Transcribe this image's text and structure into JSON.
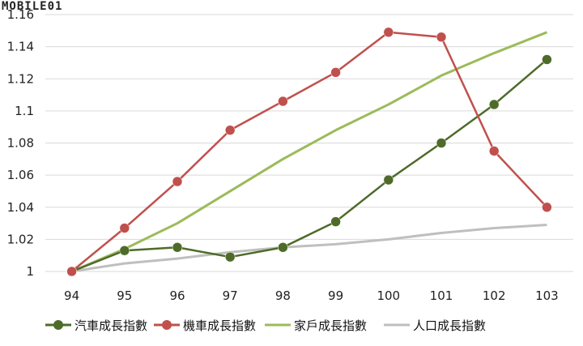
{
  "watermark": "MOBILE01",
  "chart_data": {
    "type": "line",
    "title": "",
    "xlabel": "",
    "ylabel": "",
    "categories": [
      "94",
      "95",
      "96",
      "97",
      "98",
      "99",
      "100",
      "101",
      "102",
      "103"
    ],
    "ylim": [
      1,
      1.16
    ],
    "yticks": [
      "1",
      "1.02",
      "1.04",
      "1.06",
      "1.08",
      "1.1",
      "1.12",
      "1.14",
      "1.16"
    ],
    "ytick_values": [
      1,
      1.02,
      1.04,
      1.06,
      1.08,
      1.1,
      1.12,
      1.14,
      1.16
    ],
    "grid": true,
    "legend": "bottom",
    "series": [
      {
        "name": "汽車成長指數",
        "values": [
          1.0,
          1.013,
          1.015,
          1.009,
          1.015,
          1.031,
          1.057,
          1.08,
          1.104,
          1.132
        ],
        "color": "#4e6b2a",
        "markers": true
      },
      {
        "name": "機車成長指數",
        "values": [
          1.0,
          1.027,
          1.056,
          1.088,
          1.106,
          1.124,
          1.149,
          1.146,
          1.075,
          1.04
        ],
        "color": "#c0504d",
        "markers": true
      },
      {
        "name": "家戶成長指數",
        "values": [
          1.0,
          1.014,
          1.03,
          1.05,
          1.07,
          1.088,
          1.104,
          1.122,
          1.136,
          1.149
        ],
        "color": "#9bbb59",
        "markers": false
      },
      {
        "name": "人口成長指數",
        "values": [
          1.0,
          1.005,
          1.008,
          1.012,
          1.015,
          1.017,
          1.02,
          1.024,
          1.027,
          1.029
        ],
        "color": "#bfbfbf",
        "markers": false
      }
    ]
  }
}
